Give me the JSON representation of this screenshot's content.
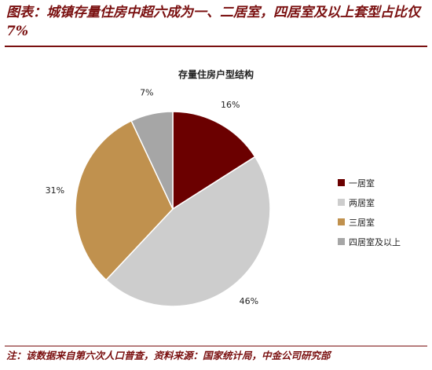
{
  "figure": {
    "title": "图表：城镇存量住房中超六成为一、二居室，四居室及以上套型占比仅 7%",
    "footnote": "注：该数据来自第六次人口普查，资料来源：国家统计局，中金公司研究部"
  },
  "chart_data": {
    "type": "pie",
    "title": "存量住房户型结构",
    "categories": [
      "一居室",
      "两居室",
      "三居室",
      "四居室及以上"
    ],
    "values": [
      16,
      46,
      31,
      7
    ],
    "labels": [
      "16%",
      "46%",
      "31%",
      "7%"
    ],
    "colors": [
      "#6b0000",
      "#cdcdcd",
      "#c0914e",
      "#a6a6a6"
    ],
    "legend_position": "right"
  }
}
